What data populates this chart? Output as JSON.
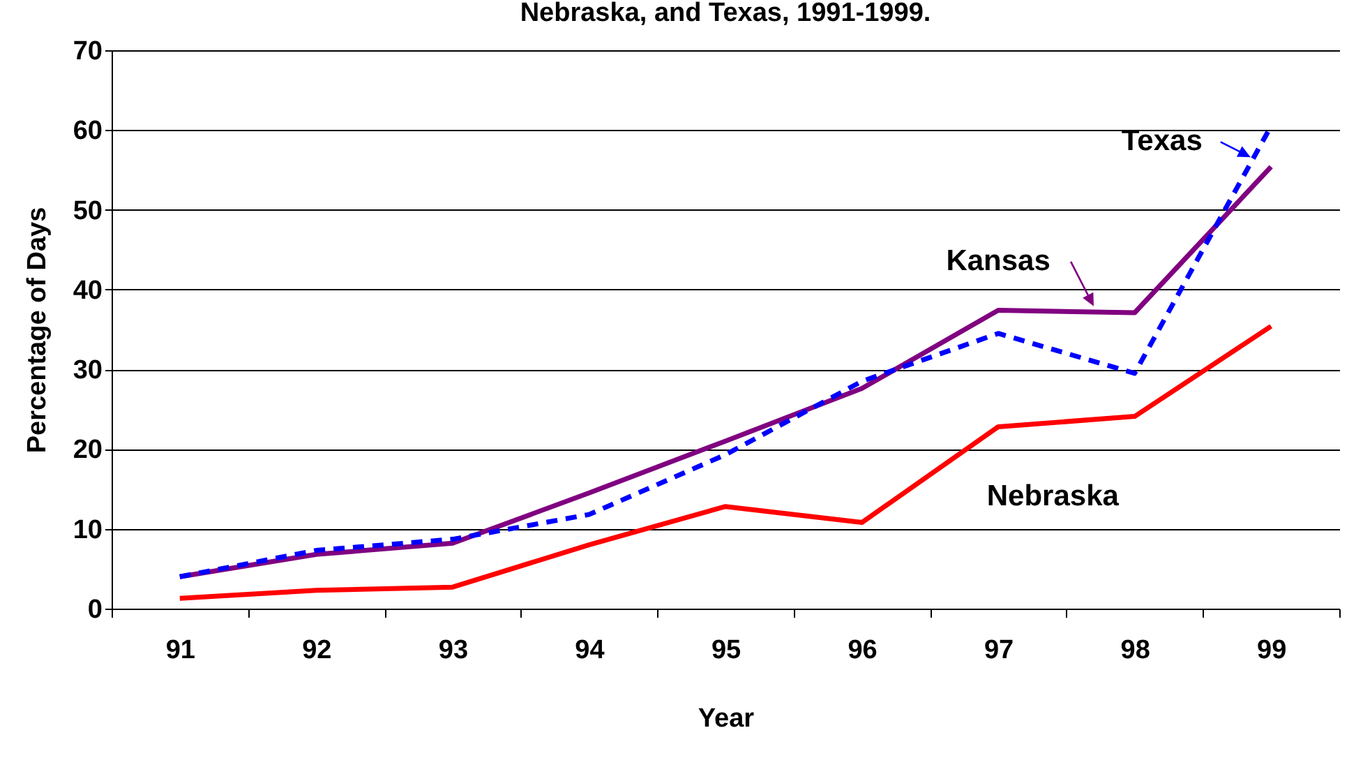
{
  "chart_data": {
    "type": "line",
    "title": "Nebraska, and Texas, 1991-1999.",
    "xlabel": "Year",
    "ylabel": "Percentage of Days",
    "categories": [
      "91",
      "92",
      "93",
      "94",
      "95",
      "96",
      "97",
      "98",
      "99"
    ],
    "series": [
      {
        "name": "Texas",
        "color": "#0000ff",
        "line_style": "dashed",
        "values": [
          4,
          7.3,
          8.7,
          11.8,
          19.3,
          28.5,
          34.5,
          29.5,
          60.5
        ]
      },
      {
        "name": "Kansas",
        "color": "#800080",
        "line_style": "solid",
        "values": [
          4,
          6.8,
          8.2,
          14.5,
          21,
          27.6,
          37.4,
          37.1,
          55.4
        ]
      },
      {
        "name": "Nebraska",
        "color": "#ff0000",
        "line_style": "solid",
        "values": [
          1.3,
          2.3,
          2.7,
          8,
          12.8,
          10.8,
          22.8,
          24.1,
          35.4
        ]
      }
    ],
    "ylim": [
      0,
      70
    ],
    "yticks": [
      0,
      10,
      20,
      30,
      40,
      50,
      60,
      70
    ],
    "grid": "y",
    "legend": "top right",
    "marker": "none"
  }
}
